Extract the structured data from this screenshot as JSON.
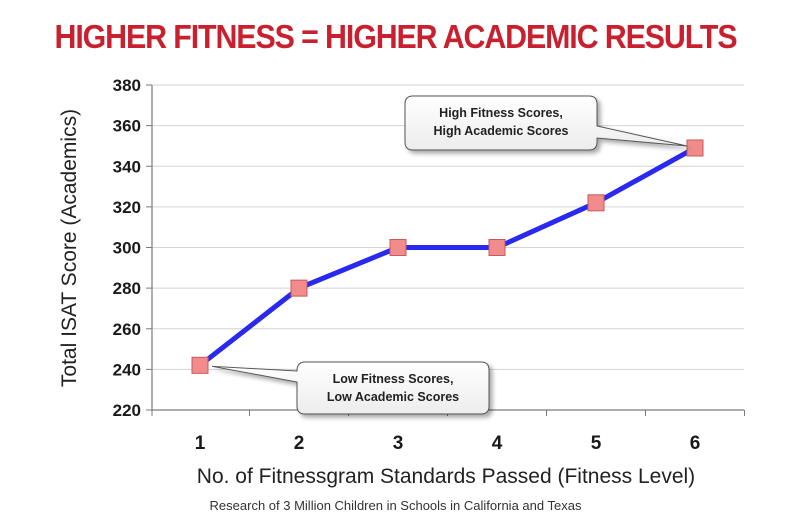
{
  "header": {
    "title": "HIGHER FITNESS = HIGHER ACADEMIC RESULTS"
  },
  "caption": "Research of 3 Million Children in Schools in California and Texas",
  "colors": {
    "title": "#c9202f",
    "line": "#2929f0",
    "marker_fill": "#f28b8b",
    "marker_stroke": "#c85a5a"
  },
  "chart_data": {
    "type": "line",
    "title": "HIGHER FITNESS = HIGHER ACADEMIC RESULTS",
    "xlabel": "No. of Fitnessgram Standards Passed (Fitness Level)",
    "ylabel": "Total ISAT Score (Academics)",
    "x": [
      1,
      2,
      3,
      4,
      5,
      6
    ],
    "series": [
      {
        "values": [
          242,
          280,
          300,
          300,
          322,
          349
        ]
      }
    ],
    "ylim": [
      220,
      380
    ],
    "yticks": [
      220,
      240,
      260,
      280,
      300,
      320,
      340,
      360,
      380
    ],
    "xticks": [
      "1",
      "2",
      "3",
      "4",
      "5",
      "6"
    ],
    "grid": true,
    "annotations": [
      {
        "lines": [
          "High Fitness Scores,",
          "High Academic Scores"
        ],
        "x": 6,
        "y": 349
      },
      {
        "lines": [
          "Low Fitness Scores,",
          "Low Academic Scores"
        ],
        "x": 1,
        "y": 242
      }
    ]
  }
}
